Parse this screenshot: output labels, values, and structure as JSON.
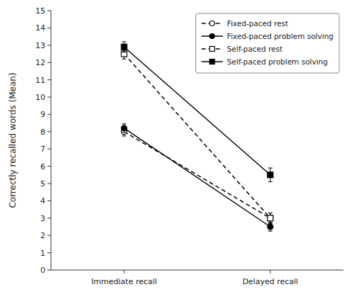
{
  "chart_data": {
    "type": "line",
    "categories": [
      "Immediate recall",
      "Delayed recall"
    ],
    "series": [
      {
        "name": "Fixed-paced rest",
        "values": [
          8.0,
          3.0
        ],
        "errors": [
          0.25,
          0.3
        ],
        "color": "black",
        "marker": "circle-open",
        "line_style": "dashed"
      },
      {
        "name": "Fixed-paced problem solving",
        "values": [
          8.2,
          2.5
        ],
        "errors": [
          0.25,
          0.25
        ],
        "color": "black",
        "marker": "circle",
        "line_style": "solid"
      },
      {
        "name": "Self-paced rest",
        "values": [
          12.5,
          3.0
        ],
        "errors": [
          0.3,
          0.3
        ],
        "color": "black",
        "marker": "square-open",
        "line_style": "dashed"
      },
      {
        "name": "Self-paced problem solving",
        "values": [
          12.9,
          5.5
        ],
        "errors": [
          0.3,
          0.4
        ],
        "color": "black",
        "marker": "square",
        "line_style": "solid"
      }
    ],
    "ylabel": "Correctly recalled words (Mean)",
    "ylim": [
      0,
      15
    ],
    "yticks": [
      0,
      1,
      2,
      3,
      4,
      5,
      6,
      7,
      8,
      9,
      10,
      11,
      12,
      13,
      14,
      15
    ],
    "grid": false,
    "legend": "upper right"
  }
}
